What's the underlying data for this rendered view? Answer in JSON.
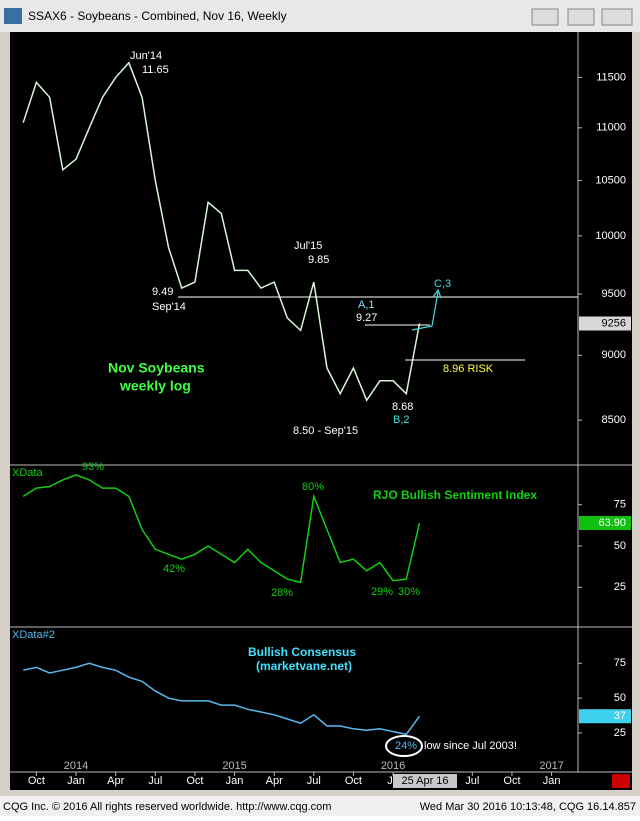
{
  "window": {
    "title": "SSAX6 - Soybeans - Combined, Nov 16, Weekly"
  },
  "footer": {
    "left": "CQG Inc. © 2016 All rights reserved worldwide. http://www.cqg.com",
    "right": "Wed Mar 30 2016 10:13:48, CQG 16.14.857"
  },
  "chart_data": [
    {
      "type": "line",
      "log": true,
      "color": "#d8f5d8",
      "x": [
        "2013-09",
        "2013-10",
        "2013-11",
        "2013-12",
        "2014-01",
        "2014-02",
        "2014-03",
        "2014-04",
        "2014-05",
        "2014-06",
        "2014-07",
        "2014-08",
        "2014-09",
        "2014-10",
        "2014-11",
        "2014-12",
        "2015-01",
        "2015-02",
        "2015-03",
        "2015-04",
        "2015-05",
        "2015-06",
        "2015-07",
        "2015-08",
        "2015-09",
        "2015-10",
        "2015-11",
        "2015-12",
        "2016-01",
        "2016-02",
        "2016-03"
      ],
      "values": [
        11050,
        11450,
        11300,
        10600,
        10700,
        11000,
        11300,
        11500,
        11650,
        11300,
        10500,
        9900,
        9550,
        9600,
        10300,
        10200,
        9700,
        9700,
        9550,
        9600,
        9300,
        9200,
        9600,
        8900,
        8700,
        8900,
        8650,
        8800,
        8800,
        8700,
        9256
      ],
      "xlim": [
        "2013-08",
        "2017-03"
      ],
      "ylim": [
        8170,
        11970
      ],
      "yticks": [
        8500,
        9000,
        9500,
        10000,
        10500,
        11000,
        11500
      ],
      "current": 9256,
      "annotations": [
        "Jun'14",
        "11.65",
        "9.49",
        "Sep'14",
        "Jul'15",
        "9.85",
        "A,1",
        "9.27",
        "C,3",
        "8.96 RISK",
        "8.68",
        "B,2",
        "8.50 - Sep'15",
        "Nov Soybeans",
        "weekly log"
      ]
    },
    {
      "type": "line",
      "name": "XData",
      "color": "#10d010",
      "x": [
        "2013-09",
        "2013-10",
        "2013-11",
        "2013-12",
        "2014-01",
        "2014-02",
        "2014-03",
        "2014-04",
        "2014-05",
        "2014-06",
        "2014-07",
        "2014-08",
        "2014-09",
        "2014-10",
        "2014-11",
        "2014-12",
        "2015-01",
        "2015-02",
        "2015-03",
        "2015-04",
        "2015-05",
        "2015-06",
        "2015-07",
        "2015-08",
        "2015-09",
        "2015-10",
        "2015-11",
        "2015-12",
        "2016-01",
        "2016-02",
        "2016-03"
      ],
      "values": [
        80,
        85,
        86,
        90,
        93,
        90,
        85,
        85,
        80,
        60,
        48,
        45,
        42,
        45,
        50,
        45,
        40,
        48,
        40,
        35,
        30,
        28,
        80,
        60,
        40,
        42,
        35,
        40,
        29,
        30,
        63.9
      ],
      "xlim": [
        "2013-08",
        "2017-03"
      ],
      "ylim": [
        1,
        99
      ],
      "yticks": [
        25,
        50,
        75
      ],
      "current": {
        "value": 63.9,
        "label": "63.90"
      },
      "annotations": [
        "93%",
        "80%",
        "42%",
        "28%",
        "29%",
        "30%",
        "RJO Bullish Sentiment Index"
      ]
    },
    {
      "type": "line",
      "name": "XData#2",
      "color": "#5ab8f0",
      "x": [
        "2013-09",
        "2013-10",
        "2013-11",
        "2013-12",
        "2014-01",
        "2014-02",
        "2014-03",
        "2014-04",
        "2014-05",
        "2014-06",
        "2014-07",
        "2014-08",
        "2014-09",
        "2014-10",
        "2014-11",
        "2014-12",
        "2015-01",
        "2015-02",
        "2015-03",
        "2015-04",
        "2015-05",
        "2015-06",
        "2015-07",
        "2015-08",
        "2015-09",
        "2015-10",
        "2015-11",
        "2015-12",
        "2016-01",
        "2016-02",
        "2016-03"
      ],
      "values": [
        70,
        72,
        68,
        70,
        72,
        75,
        72,
        70,
        65,
        62,
        55,
        50,
        48,
        48,
        48,
        45,
        45,
        42,
        40,
        38,
        35,
        32,
        38,
        30,
        30,
        28,
        27,
        28,
        26,
        24,
        37
      ],
      "xlim": [
        "2013-08",
        "2017-03"
      ],
      "ylim": [
        -3,
        101
      ],
      "yticks": [
        25,
        50,
        75
      ],
      "current": 37,
      "annotations": [
        "Bullish Consensus",
        "(marketvane.net)",
        "24%",
        "low since Jul 2003!"
      ],
      "xticks": [
        {
          "value": "2013-10",
          "label": "Oct"
        },
        {
          "value": "2014-01",
          "label": "Jan"
        },
        {
          "value": "2014-04",
          "label": "Apr"
        },
        {
          "value": "2014-07",
          "label": "Jul"
        },
        {
          "value": "2014-10",
          "label": "Oct"
        },
        {
          "value": "2015-01",
          "label": "Jan"
        },
        {
          "value": "2015-04",
          "label": "Apr"
        },
        {
          "value": "2015-07",
          "label": "Jul"
        },
        {
          "value": "2015-10",
          "label": "Oct"
        },
        {
          "value": "2016-01",
          "label": "Ja"
        },
        {
          "value": "2016-07",
          "label": "Jul"
        },
        {
          "value": "2016-10",
          "label": "Oct"
        },
        {
          "value": "2017-01",
          "label": "Jan"
        }
      ],
      "xticks_years": [
        {
          "value": "2014-01",
          "label": "2014"
        },
        {
          "value": "2015-01",
          "label": "2015"
        },
        {
          "value": "2016-01",
          "label": "2016"
        },
        {
          "value": "2017-01",
          "label": "2017"
        }
      ],
      "cursor_label": "25 Apr 16"
    }
  ]
}
